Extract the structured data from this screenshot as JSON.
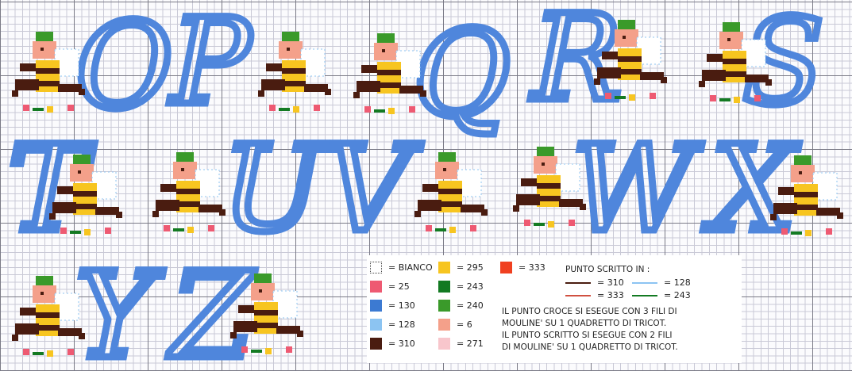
{
  "letters": [
    "O",
    "P",
    "Q",
    "R",
    "S",
    "T",
    "U",
    "V",
    "W",
    "X",
    "Y",
    "Z"
  ],
  "legend": {
    "swatches": [
      {
        "label": "= BIANCO",
        "color": "#ffffff"
      },
      {
        "label": "= 25",
        "color": "#ee5a72"
      },
      {
        "label": "= 130",
        "color": "#3c7ad2"
      },
      {
        "label": "= 128",
        "color": "#8cc4f2"
      },
      {
        "label": "= 310",
        "color": "#4a1c10"
      },
      {
        "label": "= 295",
        "color": "#f7c520"
      },
      {
        "label": "= 243",
        "color": "#137a22"
      },
      {
        "label": "= 240",
        "color": "#3a9a2a"
      },
      {
        "label": "= 6",
        "color": "#f4a08a"
      },
      {
        "label": "= 271",
        "color": "#f8c6cc"
      },
      {
        "label": "= 333",
        "color": "#f04020"
      }
    ],
    "punto_title": "PUNTO SCRITTO IN :",
    "threads": [
      {
        "label": "= 310",
        "color": "#4a1c10"
      },
      {
        "label": "= 333",
        "color": "#d05040"
      },
      {
        "label": "= 128",
        "color": "#8cc4f2"
      },
      {
        "label": "= 243",
        "color": "#137a22"
      }
    ],
    "notes": [
      "IL  PUNTO CROCE SI ESEGUE CON 3 FILI DI",
      "MOULINE' SU 1 QUADRETTO DI TRICOT.",
      "IL PUNTO SCRITTO SI ESEGUE CON 2 FILI",
      "DI MOULINE' SU 1 QUADRETTO DI TRICOT."
    ]
  }
}
